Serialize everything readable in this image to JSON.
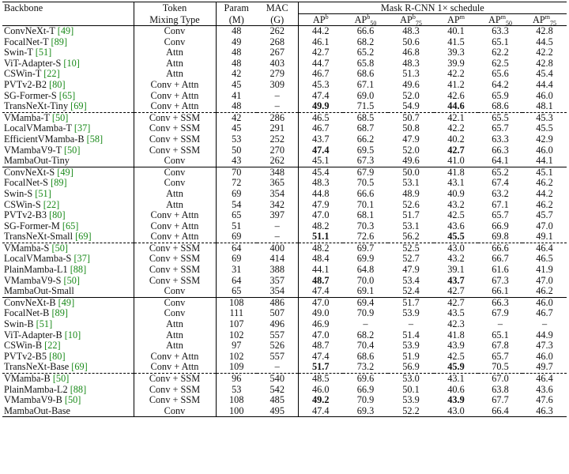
{
  "headers": {
    "backbone": "Backbone",
    "token_mixing_1": "Token",
    "token_mixing_2": "Mixing Type",
    "param_1": "Param",
    "param_2": "(M)",
    "mac_1": "MAC",
    "mac_2": "(G)",
    "group": "Mask R-CNN 1× schedule",
    "metrics": [
      {
        "base": "AP",
        "sup": "b",
        "sub": ""
      },
      {
        "base": "AP",
        "sup": "b",
        "sub": "50"
      },
      {
        "base": "AP",
        "sup": "b",
        "sub": "75"
      },
      {
        "base": "AP",
        "sup": "m",
        "sub": ""
      },
      {
        "base": "AP",
        "sup": "m",
        "sub": "50"
      },
      {
        "base": "AP",
        "sup": "m",
        "sub": "75"
      }
    ]
  },
  "rows": [
    {
      "name": "ConvNeXt-T",
      "cite": "[49]",
      "mix": "Conv",
      "param": "48",
      "mac": "262",
      "m": [
        "44.2",
        "66.6",
        "48.3",
        "40.1",
        "63.3",
        "42.8"
      ],
      "bold": [],
      "sep": "solid"
    },
    {
      "name": "FocalNet-T",
      "cite": "[89]",
      "mix": "Conv",
      "param": "49",
      "mac": "268",
      "m": [
        "46.1",
        "68.2",
        "50.6",
        "41.5",
        "65.1",
        "44.5"
      ],
      "bold": [],
      "sep": ""
    },
    {
      "name": "Swin-T",
      "cite": "[51]",
      "mix": "Attn",
      "param": "48",
      "mac": "267",
      "m": [
        "42.7",
        "65.2",
        "46.8",
        "39.3",
        "62.2",
        "42.2"
      ],
      "bold": [],
      "sep": ""
    },
    {
      "name": "ViT-Adapter-S",
      "cite": "[10]",
      "mix": "Attn",
      "param": "48",
      "mac": "403",
      "m": [
        "44.7",
        "65.8",
        "48.3",
        "39.9",
        "62.5",
        "42.8"
      ],
      "bold": [],
      "sep": ""
    },
    {
      "name": "CSWin-T",
      "cite": "[22]",
      "mix": "Attn",
      "param": "42",
      "mac": "279",
      "m": [
        "46.7",
        "68.6",
        "51.3",
        "42.2",
        "65.6",
        "45.4"
      ],
      "bold": [],
      "sep": ""
    },
    {
      "name": "PVTv2-B2",
      "cite": "[80]",
      "mix": "Conv + Attn",
      "param": "45",
      "mac": "309",
      "m": [
        "45.3",
        "67.1",
        "49.6",
        "41.2",
        "64.2",
        "44.4"
      ],
      "bold": [],
      "sep": ""
    },
    {
      "name": "SG-Former-S",
      "cite": "[65]",
      "mix": "Conv + Attn",
      "param": "41",
      "mac": "–",
      "m": [
        "47.4",
        "69.0",
        "52.0",
        "42.6",
        "65.9",
        "46.0"
      ],
      "bold": [],
      "sep": ""
    },
    {
      "name": "TransNeXt-Tiny",
      "cite": "[69]",
      "mix": "Conv + Attn",
      "param": "48",
      "mac": "–",
      "m": [
        "49.9",
        "71.5",
        "54.9",
        "44.6",
        "68.6",
        "48.1"
      ],
      "bold": [
        0,
        3
      ],
      "sep": ""
    },
    {
      "name": "VMamba-T",
      "cite": "[50]",
      "mix": "Conv + SSM",
      "param": "42",
      "mac": "286",
      "m": [
        "46.5",
        "68.5",
        "50.7",
        "42.1",
        "65.5",
        "45.3"
      ],
      "bold": [],
      "sep": "dashed"
    },
    {
      "name": "LocalVMamba-T",
      "cite": "[37]",
      "mix": "Conv + SSM",
      "param": "45",
      "mac": "291",
      "m": [
        "46.7",
        "68.7",
        "50.8",
        "42.2",
        "65.7",
        "45.5"
      ],
      "bold": [],
      "sep": ""
    },
    {
      "name": "EfficientVMamba-B",
      "cite": "[58]",
      "mix": "Conv + SSM",
      "param": "53",
      "mac": "252",
      "m": [
        "43.7",
        "66.2",
        "47.9",
        "40.2",
        "63.3",
        "42.9"
      ],
      "bold": [],
      "sep": ""
    },
    {
      "name": "VMambaV9-T",
      "cite": "[50]",
      "mix": "Conv + SSM",
      "param": "50",
      "mac": "270",
      "m": [
        "47.4",
        "69.5",
        "52.0",
        "42.7",
        "66.3",
        "46.0"
      ],
      "bold": [
        0,
        3
      ],
      "sep": ""
    },
    {
      "name": "MambaOut-Tiny",
      "cite": "",
      "mix": "Conv",
      "param": "43",
      "mac": "262",
      "m": [
        "45.1",
        "67.3",
        "49.6",
        "41.0",
        "64.1",
        "44.1"
      ],
      "bold": [],
      "sep": ""
    },
    {
      "name": "ConvNeXt-S",
      "cite": "[49]",
      "mix": "Conv",
      "param": "70",
      "mac": "348",
      "m": [
        "45.4",
        "67.9",
        "50.0",
        "41.8",
        "65.2",
        "45.1"
      ],
      "bold": [],
      "sep": "solid"
    },
    {
      "name": "FocalNet-S",
      "cite": "[89]",
      "mix": "Conv",
      "param": "72",
      "mac": "365",
      "m": [
        "48.3",
        "70.5",
        "53.1",
        "43.1",
        "67.4",
        "46.2"
      ],
      "bold": [],
      "sep": ""
    },
    {
      "name": "Swin-S",
      "cite": "[51]",
      "mix": "Attn",
      "param": "69",
      "mac": "354",
      "m": [
        "44.8",
        "66.6",
        "48.9",
        "40.9",
        "63.2",
        "44.2"
      ],
      "bold": [],
      "sep": ""
    },
    {
      "name": "CSWin-S",
      "cite": "[22]",
      "mix": "Attn",
      "param": "54",
      "mac": "342",
      "m": [
        "47.9",
        "70.1",
        "52.6",
        "43.2",
        "67.1",
        "46.2"
      ],
      "bold": [],
      "sep": ""
    },
    {
      "name": "PVTv2-B3",
      "cite": "[80]",
      "mix": "Conv + Attn",
      "param": "65",
      "mac": "397",
      "m": [
        "47.0",
        "68.1",
        "51.7",
        "42.5",
        "65.7",
        "45.7"
      ],
      "bold": [],
      "sep": ""
    },
    {
      "name": "SG-Former-M",
      "cite": "[65]",
      "mix": "Conv + Attn",
      "param": "51",
      "mac": "–",
      "m": [
        "48.2",
        "70.3",
        "53.1",
        "43.6",
        "66.9",
        "47.0"
      ],
      "bold": [],
      "sep": ""
    },
    {
      "name": "TransNeXt-Small",
      "cite": "[69]",
      "mix": "Conv + Attn",
      "param": "69",
      "mac": "–",
      "m": [
        "51.1",
        "72.6",
        "56.2",
        "45.5",
        "69.8",
        "49.1"
      ],
      "bold": [
        0,
        3
      ],
      "sep": ""
    },
    {
      "name": "VMamba-S",
      "cite": "[50]",
      "mix": "Conv + SSM",
      "param": "64",
      "mac": "400",
      "m": [
        "48.2",
        "69.7",
        "52.5",
        "43.0",
        "66.6",
        "46.4"
      ],
      "bold": [],
      "sep": "dashed"
    },
    {
      "name": "LocalVMamba-S",
      "cite": "[37]",
      "mix": "Conv + SSM",
      "param": "69",
      "mac": "414",
      "m": [
        "48.4",
        "69.9",
        "52.7",
        "43.2",
        "66.7",
        "46.5"
      ],
      "bold": [],
      "sep": ""
    },
    {
      "name": "PlainMamba-L1",
      "cite": "[88]",
      "mix": "Conv + SSM",
      "param": "31",
      "mac": "388",
      "m": [
        "44.1",
        "64.8",
        "47.9",
        "39.1",
        "61.6",
        "41.9"
      ],
      "bold": [],
      "sep": ""
    },
    {
      "name": "VMambaV9-S",
      "cite": "[50]",
      "mix": "Conv + SSM",
      "param": "64",
      "mac": "357",
      "m": [
        "48.7",
        "70.0",
        "53.4",
        "43.7",
        "67.3",
        "47.0"
      ],
      "bold": [
        0,
        3
      ],
      "sep": ""
    },
    {
      "name": "MambaOut-Small",
      "cite": "",
      "mix": "Conv",
      "param": "65",
      "mac": "354",
      "m": [
        "47.4",
        "69.1",
        "52.4",
        "42.7",
        "66.1",
        "46.2"
      ],
      "bold": [],
      "sep": ""
    },
    {
      "name": "ConvNeXt-B",
      "cite": "[49]",
      "mix": "Conv",
      "param": "108",
      "mac": "486",
      "m": [
        "47.0",
        "69.4",
        "51.7",
        "42.7",
        "66.3",
        "46.0"
      ],
      "bold": [],
      "sep": "solid"
    },
    {
      "name": "FocalNet-B",
      "cite": "[89]",
      "mix": "Conv",
      "param": "111",
      "mac": "507",
      "m": [
        "49.0",
        "70.9",
        "53.9",
        "43.5",
        "67.9",
        "46.7"
      ],
      "bold": [],
      "sep": ""
    },
    {
      "name": "Swin-B",
      "cite": "[51]",
      "mix": "Attn",
      "param": "107",
      "mac": "496",
      "m": [
        "46.9",
        "–",
        "–",
        "42.3",
        "–",
        "–"
      ],
      "bold": [],
      "sep": ""
    },
    {
      "name": "ViT-Adapter-B",
      "cite": "[10]",
      "mix": "Attn",
      "param": "102",
      "mac": "557",
      "m": [
        "47.0",
        "68.2",
        "51.4",
        "41.8",
        "65.1",
        "44.9"
      ],
      "bold": [],
      "sep": ""
    },
    {
      "name": "CSWin-B",
      "cite": "[22]",
      "mix": "Attn",
      "param": "97",
      "mac": "526",
      "m": [
        "48.7",
        "70.4",
        "53.9",
        "43.9",
        "67.8",
        "47.3"
      ],
      "bold": [],
      "sep": ""
    },
    {
      "name": "PVTv2-B5",
      "cite": "[80]",
      "mix": "Conv + Attn",
      "param": "102",
      "mac": "557",
      "m": [
        "47.4",
        "68.6",
        "51.9",
        "42.5",
        "65.7",
        "46.0"
      ],
      "bold": [],
      "sep": ""
    },
    {
      "name": "TransNeXt-Base",
      "cite": "[69]",
      "mix": "Conv + Attn",
      "param": "109",
      "mac": "–",
      "m": [
        "51.7",
        "73.2",
        "56.9",
        "45.9",
        "70.5",
        "49.7"
      ],
      "bold": [
        0,
        3
      ],
      "sep": ""
    },
    {
      "name": "VMamba-B",
      "cite": "[50]",
      "mix": "Conv + SSM",
      "param": "96",
      "mac": "540",
      "m": [
        "48.5",
        "69.6",
        "53.0",
        "43.1",
        "67.0",
        "46.4"
      ],
      "bold": [],
      "sep": "dashed"
    },
    {
      "name": "PlainMamba-L2",
      "cite": "[88]",
      "mix": "Conv + SSM",
      "param": "53",
      "mac": "542",
      "m": [
        "46.0",
        "66.9",
        "50.1",
        "40.6",
        "63.8",
        "43.6"
      ],
      "bold": [],
      "sep": ""
    },
    {
      "name": "VMambaV9-B",
      "cite": "[50]",
      "mix": "Conv + SSM",
      "param": "108",
      "mac": "485",
      "m": [
        "49.2",
        "70.9",
        "53.9",
        "43.9",
        "67.7",
        "47.6"
      ],
      "bold": [
        0,
        3
      ],
      "sep": ""
    },
    {
      "name": "MambaOut-Base",
      "cite": "",
      "mix": "Conv",
      "param": "100",
      "mac": "495",
      "m": [
        "47.4",
        "69.3",
        "52.2",
        "43.0",
        "66.4",
        "46.3"
      ],
      "bold": [],
      "sep": ""
    }
  ]
}
